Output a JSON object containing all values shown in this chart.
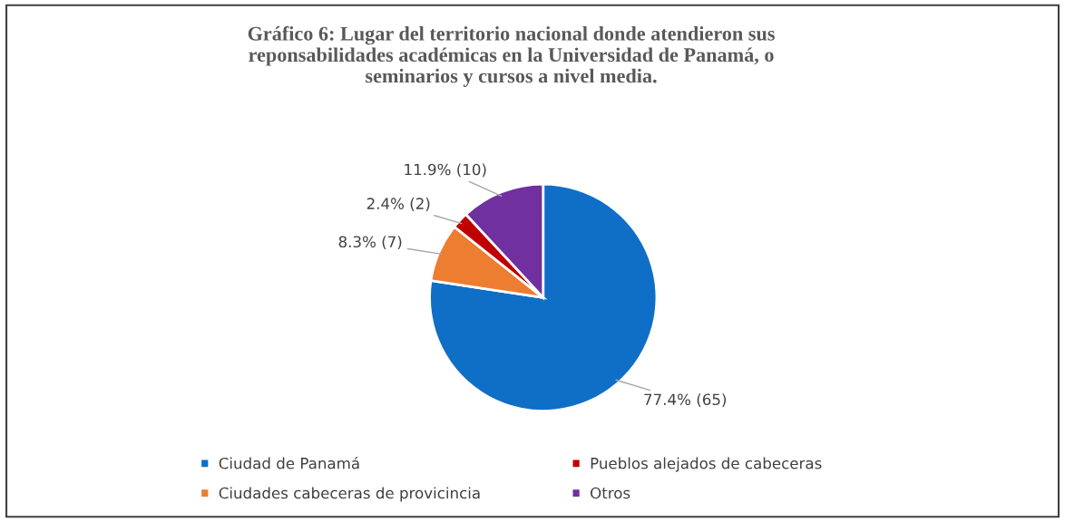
{
  "chart_data": {
    "type": "pie",
    "title": "Gráfico 6: Lugar del territorio nacional donde atendieron sus\nreponsabilidades académicas en la Universidad de Panamá, o\nseminarios y cursos a nivel media.",
    "categories": [
      "Ciudad de Panamá",
      "Ciudades cabeceras de provicincia",
      "Pueblos alejados de cabeceras",
      "Otros"
    ],
    "values": [
      65,
      7,
      2,
      10
    ],
    "value_labels": [
      "77.4% (65)",
      "8.3% (7)",
      "2.4% (2)",
      "11.9% (10)"
    ],
    "colors": [
      "#0f6fc6",
      "#ed7d31",
      "#c00000",
      "#7030a0"
    ],
    "legend": "bottom"
  }
}
